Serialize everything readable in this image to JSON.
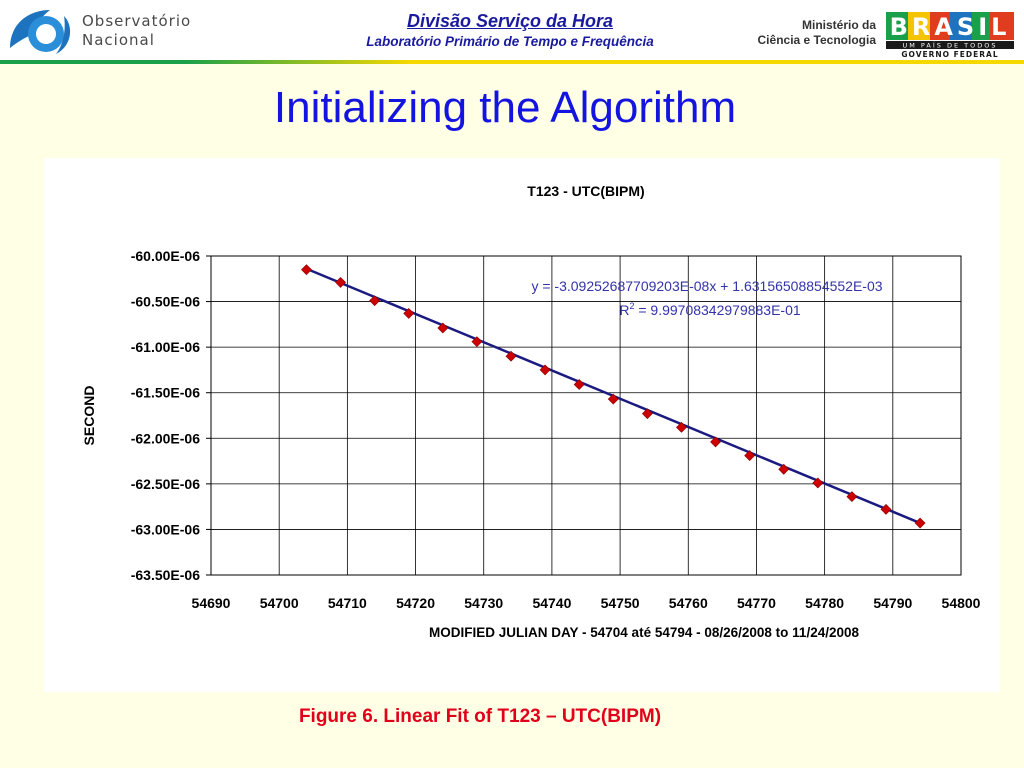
{
  "header": {
    "org_name_line1": "Observatório",
    "org_name_line2": "Nacional",
    "division_title": "Divisão Serviço da Hora",
    "division_subtitle": "Laboratório Primário de Tempo e Frequência",
    "ministry_line1": "Ministério da",
    "ministry_line2": "Ciência e Tecnologia",
    "brasil_letters": "BRASIL",
    "brasil_tagline": "UM PAÍS DE TODOS",
    "brasil_government": "GOVERNO FEDERAL"
  },
  "slide": {
    "title": "Initializing the Algorithm",
    "caption": "Figure 6. Linear Fit of T123 – UTC(BIPM)"
  },
  "colors": {
    "title_blue": "#1414e0",
    "caption_red": "#e0001a",
    "line_navy": "#1a1a80",
    "marker_red": "#cc0000",
    "equation_blue": "#3333aa"
  },
  "chart_data": {
    "type": "scatter",
    "title": "T123 - UTC(BIPM)",
    "xlabel": "MODIFIED JULIAN DAY - 54704 até 54794 - 08/26/2008 to 11/24/2008",
    "ylabel": "SECOND",
    "xlim": [
      54690,
      54800
    ],
    "ylim": [
      -63.5,
      -60.0
    ],
    "x_ticks": [
      "54690",
      "54700",
      "54710",
      "54720",
      "54730",
      "54740",
      "54750",
      "54760",
      "54770",
      "54780",
      "54790",
      "54800"
    ],
    "y_ticks": [
      "-60.00E-06",
      "-60.50E-06",
      "-61.00E-06",
      "-61.50E-06",
      "-62.00E-06",
      "-62.50E-06",
      "-63.00E-06",
      "-63.50E-06"
    ],
    "y_unit": "E-06 s",
    "grid": true,
    "series": [
      {
        "name": "T123 - UTC(BIPM)",
        "x": [
          54704,
          54709,
          54714,
          54719,
          54724,
          54729,
          54734,
          54739,
          54744,
          54749,
          54754,
          54759,
          54764,
          54769,
          54774,
          54779,
          54784,
          54789,
          54794
        ],
        "y": [
          -60.15,
          -60.29,
          -60.49,
          -60.63,
          -60.79,
          -60.94,
          -61.1,
          -61.25,
          -61.41,
          -61.57,
          -61.73,
          -61.88,
          -62.04,
          -62.19,
          -62.34,
          -62.49,
          -62.64,
          -62.78,
          -62.93
        ]
      }
    ],
    "fit_line": {
      "x": [
        54704,
        54794
      ],
      "y": [
        -60.14,
        -62.93
      ]
    },
    "equation_text": "y = -3.09252687709203E-08x + 1.63156508854552E-03",
    "r2_label": "R",
    "r2_exponent": "2",
    "r2_value_text": " = 9.99708342979883E-01"
  }
}
